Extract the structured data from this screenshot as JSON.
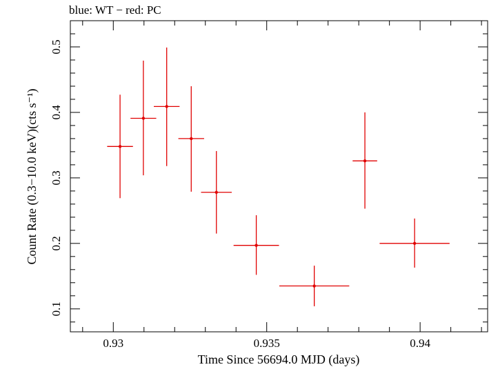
{
  "chart_data": {
    "type": "scatter",
    "title": "blue: WT − red: PC",
    "xlabel": "Time Since 56694.0 MJD (days)",
    "ylabel": "Count Rate (0.3−10.0 keV)(cts s⁻¹)",
    "xlim": [
      0.9286,
      0.9422
    ],
    "ylim": [
      0.065,
      0.54
    ],
    "x_ticks": [
      0.93,
      0.935,
      0.94
    ],
    "x_tick_labels": [
      "0.93",
      "0.935",
      "0.94"
    ],
    "y_ticks": [
      0.1,
      0.2,
      0.3,
      0.4,
      0.5
    ],
    "y_tick_labels": [
      "0.1",
      "0.2",
      "0.3",
      "0.4",
      "0.5"
    ],
    "grid": false,
    "series": [
      {
        "color": "#e00000",
        "points": [
          {
            "x": 0.93022,
            "xerr": 0.00042,
            "y": 0.348,
            "ylow": 0.269,
            "yhigh": 0.427
          },
          {
            "x": 0.93098,
            "xerr": 0.00042,
            "y": 0.391,
            "ylow": 0.304,
            "yhigh": 0.479
          },
          {
            "x": 0.93174,
            "xerr": 0.00042,
            "y": 0.409,
            "ylow": 0.318,
            "yhigh": 0.499
          },
          {
            "x": 0.93254,
            "xerr": 0.00042,
            "y": 0.36,
            "ylow": 0.279,
            "yhigh": 0.44
          },
          {
            "x": 0.93336,
            "xerr": 0.0005,
            "y": 0.278,
            "ylow": 0.215,
            "yhigh": 0.341
          },
          {
            "x": 0.93466,
            "xerr": 0.00074,
            "y": 0.197,
            "ylow": 0.152,
            "yhigh": 0.243
          },
          {
            "x": 0.93655,
            "xerr": 0.00114,
            "y": 0.135,
            "ylow": 0.104,
            "yhigh": 0.166
          },
          {
            "x": 0.9382,
            "xerr": 0.0004,
            "y": 0.326,
            "ylow": 0.253,
            "yhigh": 0.4
          },
          {
            "x": 0.93982,
            "xerr": 0.00114,
            "y": 0.2,
            "ylow": 0.163,
            "yhigh": 0.238
          }
        ]
      }
    ]
  }
}
